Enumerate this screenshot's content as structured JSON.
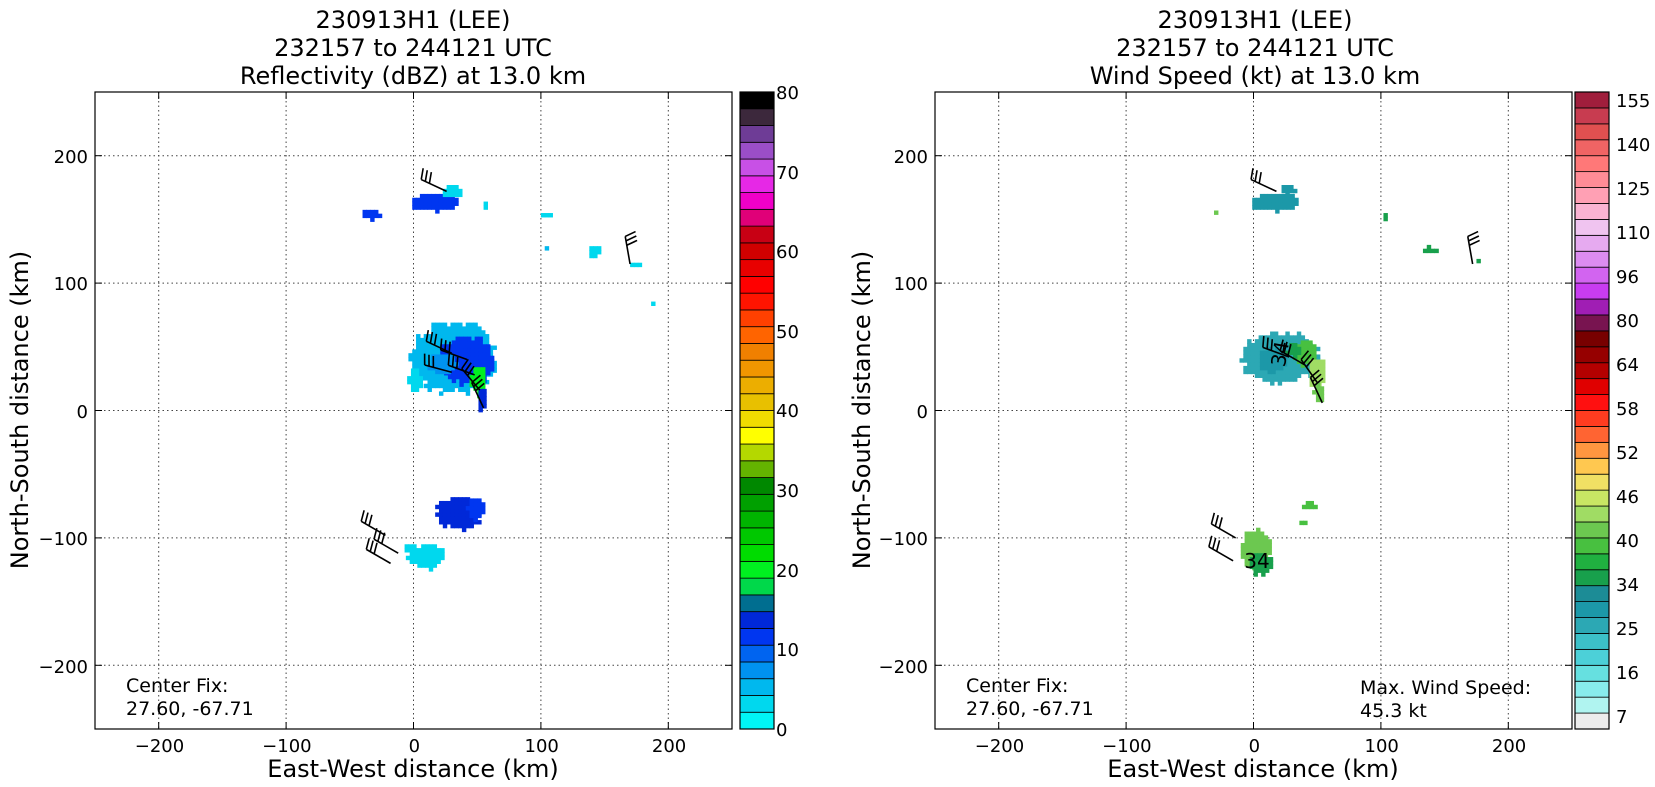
{
  "chart_data": [
    {
      "type": "heatmap",
      "title_lines": [
        "230913H1 (LEE)",
        "232157 to 244121 UTC",
        "Reflectivity (dBZ) at 13.0 km"
      ],
      "xlabel": "East-West distance (km)",
      "ylabel": "North-South distance (km)",
      "xlim": [
        -250,
        250
      ],
      "ylim": [
        -250,
        250
      ],
      "xticks": [
        -200,
        -100,
        0,
        100,
        200
      ],
      "yticks": [
        -200,
        -100,
        0,
        100,
        200
      ],
      "xtick_labels": [
        "−200",
        "−100",
        "0",
        "100",
        "200"
      ],
      "ytick_labels": [
        "−200",
        "−100",
        "0",
        "100",
        "200"
      ],
      "grid": true,
      "annotation_lines": [
        "Center Fix:",
        "27.60, -67.71"
      ],
      "colorbar": {
        "min": 0,
        "max": 80,
        "tick_values": [
          0,
          10,
          20,
          30,
          40,
          50,
          60,
          70,
          80
        ],
        "tick_labels": [
          "0",
          "10",
          "20",
          "30",
          "40",
          "50",
          "60",
          "70",
          "80"
        ],
        "colors": [
          "#00f5f5",
          "#00d8ee",
          "#00b8ee",
          "#0092f0",
          "#0064f0",
          "#0036f0",
          "#0028d8",
          "#006e90",
          "#00d84a",
          "#00f020",
          "#00dc00",
          "#00c800",
          "#00b400",
          "#00a000",
          "#008800",
          "#64b400",
          "#b4d800",
          "#ffff00",
          "#f0dc00",
          "#e8c000",
          "#ecae00",
          "#f09600",
          "#f08000",
          "#ff6400",
          "#ff4000",
          "#ff1400",
          "#ff0000",
          "#e80000",
          "#d00000",
          "#c80014",
          "#e00078",
          "#f000c8",
          "#e628e6",
          "#c850e6",
          "#9b4ec8",
          "#6e3c96",
          "#3c283c",
          "#000000"
        ]
      },
      "fields": [
        {
          "x": 16,
          "y": 162,
          "w": 40,
          "h": 14,
          "level": 5
        },
        {
          "x": -35,
          "y": 152,
          "w": 16,
          "h": 7,
          "level": 5
        },
        {
          "x": 28,
          "y": 170,
          "w": 16,
          "h": 10,
          "level": 1
        },
        {
          "x": 55,
          "y": 160,
          "w": 6,
          "h": 4,
          "level": 1
        },
        {
          "x": 102,
          "y": 151,
          "w": 10,
          "h": 4,
          "level": 1
        },
        {
          "x": 140,
          "y": 124,
          "w": 10,
          "h": 8,
          "level": 1
        },
        {
          "x": 102,
          "y": 125,
          "w": 4,
          "h": 4,
          "level": 2
        },
        {
          "x": 90,
          "y": 124,
          "w": 4,
          "h": 3,
          "level": 2
        },
        {
          "x": 174,
          "y": 113,
          "w": 8,
          "h": 6,
          "level": 1
        },
        {
          "x": 188,
          "y": 82,
          "w": 3,
          "h": 5,
          "level": 1
        },
        {
          "x": 30,
          "y": 40,
          "w": 68,
          "h": 56,
          "level": 2
        },
        {
          "x": 40,
          "y": 38,
          "w": 44,
          "h": 38,
          "level": 5
        },
        {
          "x": 22,
          "y": 35,
          "w": 22,
          "h": 18,
          "level": 3
        },
        {
          "x": 50,
          "y": 22,
          "w": 12,
          "h": 24,
          "level": 9
        },
        {
          "x": 52,
          "y": 8,
          "w": 8,
          "h": 18,
          "level": 6
        },
        {
          "x": 0,
          "y": 22,
          "w": 10,
          "h": 20,
          "level": 1
        },
        {
          "x": 35,
          "y": -82,
          "w": 36,
          "h": 26,
          "level": 6
        },
        {
          "x": 48,
          "y": -78,
          "w": 14,
          "h": 18,
          "level": 5
        },
        {
          "x": 8,
          "y": -116,
          "w": 28,
          "h": 20,
          "level": 1
        },
        {
          "x": -5,
          "y": -110,
          "w": 10,
          "h": 8,
          "level": 1
        }
      ],
      "barbs": [
        {
          "x": 26,
          "y": 172,
          "dir": 295,
          "flags": 3
        },
        {
          "x": 170,
          "y": 115,
          "dir": 350,
          "flags": 3
        },
        {
          "x": 30,
          "y": 45,
          "dir": 295,
          "flags": 3
        },
        {
          "x": 42,
          "y": 40,
          "dir": 290,
          "flags": 3
        },
        {
          "x": 48,
          "y": 28,
          "dir": 290,
          "flags": 3
        },
        {
          "x": 52,
          "y": 16,
          "dir": 320,
          "flags": 3
        },
        {
          "x": 55,
          "y": 2,
          "dir": 335,
          "flags": 3
        },
        {
          "x": 30,
          "y": 30,
          "dir": 285,
          "flags": 3
        },
        {
          "x": -22,
          "y": -98,
          "dir": 300,
          "flags": 3
        },
        {
          "x": -12,
          "y": -112,
          "dir": 300,
          "flags": 3
        },
        {
          "x": -18,
          "y": -120,
          "dir": 300,
          "flags": 3
        }
      ]
    },
    {
      "type": "heatmap",
      "title_lines": [
        "230913H1 (LEE)",
        "232157 to 244121 UTC",
        "Wind Speed (kt) at 13.0 km"
      ],
      "xlabel": "East-West distance (km)",
      "ylabel": "North-South distance (km)",
      "xlim": [
        -250,
        250
      ],
      "ylim": [
        -250,
        250
      ],
      "xticks": [
        -200,
        -100,
        0,
        100,
        200
      ],
      "yticks": [
        -200,
        -100,
        0,
        100,
        200
      ],
      "xtick_labels": [
        "−200",
        "−100",
        "0",
        "100",
        "200"
      ],
      "ytick_labels": [
        "−200",
        "−100",
        "0",
        "100",
        "200"
      ],
      "grid": true,
      "annotation_lines": [
        "Center Fix:",
        "27.60, -67.71"
      ],
      "max_wind_lines": [
        "Max. Wind Speed:",
        "45.3 kt"
      ],
      "contour_labels": [
        {
          "x": 28,
          "y": 42,
          "text": "34",
          "rotate": -80
        },
        {
          "x": 2,
          "y": -117,
          "text": "34",
          "rotate": 0
        }
      ],
      "colorbar": {
        "min": 5,
        "max": 160,
        "tick_values": [
          7,
          16,
          25,
          34,
          40,
          46,
          52,
          58,
          64,
          80,
          96,
          110,
          125,
          140,
          155
        ],
        "tick_labels": [
          "7",
          "16",
          "25",
          "34",
          "40",
          "46",
          "52",
          "58",
          "64",
          "80",
          "96",
          "110",
          "125",
          "140",
          "155"
        ],
        "bounds": [
          5,
          10,
          13,
          16,
          19,
          22,
          25,
          28,
          31,
          34,
          37,
          40,
          43,
          46,
          49,
          52,
          55,
          58,
          61,
          64,
          70,
          75,
          80,
          85,
          90,
          96,
          101,
          106,
          110,
          115,
          120,
          125,
          130,
          135,
          140,
          145,
          150,
          155,
          160
        ],
        "colors": [
          "#ececec",
          "#b0f4f0",
          "#88ecec",
          "#66e0e0",
          "#4cd0d8",
          "#3cc0c8",
          "#2ca8b4",
          "#1c98a8",
          "#1c8c96",
          "#18a04c",
          "#20b040",
          "#48c040",
          "#6cc850",
          "#a0dc64",
          "#c8e664",
          "#f0e064",
          "#ffc850",
          "#ff9640",
          "#ff6432",
          "#ff3c20",
          "#ff1010",
          "#e00000",
          "#b40000",
          "#960000",
          "#780000",
          "#781450",
          "#a01eb4",
          "#c83cf0",
          "#d264f0",
          "#dc8cf0",
          "#e6aaf0",
          "#f0c4f0",
          "#fab4d2",
          "#ffa0b4",
          "#ff8c96",
          "#ff7878",
          "#f06464",
          "#e05050",
          "#c83c50",
          "#a01e3c"
        ]
      },
      "fields": [
        {
          "x": 16,
          "y": 162,
          "w": 40,
          "h": 14,
          "level": 7
        },
        {
          "x": 25,
          "y": 172,
          "w": 12,
          "h": 8,
          "level": 7
        },
        {
          "x": -5,
          "y": 174,
          "w": 4,
          "h": 3,
          "level": 7
        },
        {
          "x": -32,
          "y": 153,
          "w": 4,
          "h": 4,
          "level": 12
        },
        {
          "x": 102,
          "y": 151,
          "w": 6,
          "h": 4,
          "level": 9
        },
        {
          "x": 138,
          "y": 124,
          "w": 10,
          "h": 6,
          "level": 9
        },
        {
          "x": 174,
          "y": 115,
          "w": 4,
          "h": 4,
          "level": 9
        },
        {
          "x": 20,
          "y": 40,
          "w": 62,
          "h": 40,
          "level": 6
        },
        {
          "x": 14,
          "y": 38,
          "w": 24,
          "h": 18,
          "level": 7
        },
        {
          "x": 38,
          "y": 44,
          "w": 20,
          "h": 20,
          "level": 11
        },
        {
          "x": 48,
          "y": 28,
          "w": 14,
          "h": 24,
          "level": 13
        },
        {
          "x": 50,
          "y": 12,
          "w": 8,
          "h": 16,
          "level": 12
        },
        {
          "x": 30,
          "y": 46,
          "w": 10,
          "h": 10,
          "level": 9
        },
        {
          "x": 43,
          "y": -76,
          "w": 10,
          "h": 8,
          "level": 11
        },
        {
          "x": 37,
          "y": -90,
          "w": 8,
          "h": 5,
          "level": 11
        },
        {
          "x": 0,
          "y": -110,
          "w": 26,
          "h": 30,
          "level": 12
        },
        {
          "x": 4,
          "y": -122,
          "w": 20,
          "h": 16,
          "level": 9
        }
      ],
      "barbs": [
        {
          "x": 18,
          "y": 172,
          "dir": 295,
          "flags": 3
        },
        {
          "x": 172,
          "y": 115,
          "dir": 350,
          "flags": 3
        },
        {
          "x": 28,
          "y": 42,
          "dir": 290,
          "flags": 3
        },
        {
          "x": 40,
          "y": 36,
          "dir": 300,
          "flags": 3
        },
        {
          "x": 50,
          "y": 22,
          "dir": 325,
          "flags": 3
        },
        {
          "x": 54,
          "y": 6,
          "dir": 335,
          "flags": 3
        },
        {
          "x": -14,
          "y": -100,
          "dir": 300,
          "flags": 3
        },
        {
          "x": -16,
          "y": -118,
          "dir": 300,
          "flags": 3
        }
      ]
    }
  ]
}
